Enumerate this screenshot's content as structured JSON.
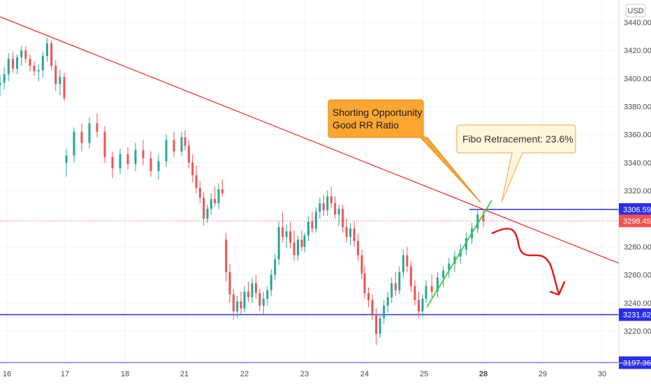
{
  "currency_badge": "USD",
  "chart_data": {
    "type": "candlestick",
    "x_axis": {
      "tick_labels": [
        "16",
        "17",
        "18",
        "21",
        "22",
        "23",
        "24",
        "25",
        "28",
        "29",
        "30"
      ],
      "bold_label": "28"
    },
    "y_axis": {
      "ylim": [
        3190,
        3450
      ],
      "tick_values": [
        3440,
        3420,
        3400,
        3380,
        3360,
        3340,
        3320,
        3300,
        3280,
        3260,
        3240,
        3220
      ],
      "tick_labels": [
        "3440.00",
        "3420.00",
        "3400.00",
        "3380.00",
        "3360.00",
        "3340.00",
        "3320.00",
        "3300.00",
        "3280.00",
        "3260.00",
        "3240.00",
        "3220.00"
      ]
    },
    "price_levels": [
      {
        "value": 3306.59,
        "label": "3306.59",
        "color": "#2a2ee6"
      },
      {
        "value": 3231.62,
        "label": "3231.62",
        "color": "#2a2ee6"
      },
      {
        "value": 3197.36,
        "label": "3197.36",
        "color": "#2a2ee6"
      }
    ],
    "last_price": {
      "value": 3298.45,
      "label": "3298.45",
      "color": "#ef5350"
    },
    "annotations": {
      "shorting": {
        "line1": "Shorting Opportunity",
        "line2": "Good RR Ratio"
      },
      "fibo": "Fibo Retracement: 23.6%"
    },
    "colors": {
      "up": "#26a69a",
      "down": "#ef5350",
      "trendline": "#e53935",
      "support_trend": "#39d33c",
      "projection": "#e61b1b"
    },
    "candles": [
      [
        3395,
        3403,
        3387,
        3397
      ],
      [
        3397,
        3408,
        3392,
        3403
      ],
      [
        3403,
        3418,
        3398,
        3414
      ],
      [
        3414,
        3419,
        3404,
        3407
      ],
      [
        3407,
        3417,
        3403,
        3415
      ],
      [
        3415,
        3423,
        3409,
        3420
      ],
      [
        3420,
        3423,
        3411,
        3414
      ],
      [
        3414,
        3417,
        3405,
        3409
      ],
      [
        3409,
        3412,
        3402,
        3405
      ],
      [
        3405,
        3410,
        3398,
        3406
      ],
      [
        3406,
        3419,
        3401,
        3416
      ],
      [
        3416,
        3429,
        3412,
        3425
      ],
      [
        3425,
        3427,
        3406,
        3409
      ],
      [
        3409,
        3413,
        3391,
        3396
      ],
      [
        3396,
        3406,
        3388,
        3401
      ],
      [
        3401,
        3404,
        3384,
        3386
      ],
      [
        3340,
        3350,
        3330,
        3345
      ],
      [
        3345,
        3365,
        3340,
        3362
      ],
      [
        3362,
        3368,
        3348,
        3354
      ],
      [
        3354,
        3372,
        3350,
        3368
      ],
      [
        3368,
        3375,
        3358,
        3362
      ],
      [
        3362,
        3366,
        3340,
        3344
      ],
      [
        3344,
        3348,
        3329,
        3336
      ],
      [
        3336,
        3350,
        3332,
        3346
      ],
      [
        3346,
        3351,
        3335,
        3339
      ],
      [
        3339,
        3354,
        3334,
        3349
      ],
      [
        3349,
        3356,
        3338,
        3343
      ],
      [
        3343,
        3348,
        3330,
        3334
      ],
      [
        3334,
        3346,
        3328,
        3341
      ],
      [
        3341,
        3360,
        3337,
        3356
      ],
      [
        3356,
        3362,
        3344,
        3348
      ],
      [
        3348,
        3362,
        3345,
        3358
      ],
      [
        3358,
        3363,
        3349,
        3352
      ],
      [
        3352,
        3356,
        3336,
        3340
      ],
      [
        3340,
        3346,
        3326,
        3331
      ],
      [
        3331,
        3338,
        3318,
        3322
      ],
      [
        3322,
        3327,
        3311,
        3315
      ],
      [
        3315,
        3319,
        3295,
        3300
      ],
      [
        3300,
        3310,
        3297,
        3307
      ],
      [
        3307,
        3318,
        3303,
        3314
      ],
      [
        3314,
        3323,
        3309,
        3311
      ],
      [
        3311,
        3325,
        3307,
        3321
      ],
      [
        3321,
        3328,
        3316,
        3318
      ],
      [
        3285,
        3290,
        3255,
        3262
      ],
      [
        3262,
        3268,
        3240,
        3246
      ],
      [
        3246,
        3250,
        3228,
        3234
      ],
      [
        3234,
        3245,
        3229,
        3241
      ],
      [
        3241,
        3248,
        3232,
        3236
      ],
      [
        3236,
        3252,
        3233,
        3248
      ],
      [
        3248,
        3255,
        3241,
        3244
      ],
      [
        3244,
        3258,
        3240,
        3254
      ],
      [
        3254,
        3260,
        3243,
        3247
      ],
      [
        3247,
        3250,
        3234,
        3238
      ],
      [
        3238,
        3248,
        3232,
        3243
      ],
      [
        3243,
        3252,
        3238,
        3249
      ],
      [
        3249,
        3264,
        3245,
        3260
      ],
      [
        3260,
        3275,
        3256,
        3271
      ],
      [
        3271,
        3298,
        3267,
        3294
      ],
      [
        3294,
        3305,
        3283,
        3287
      ],
      [
        3287,
        3296,
        3279,
        3291
      ],
      [
        3291,
        3298,
        3279,
        3283
      ],
      [
        3283,
        3292,
        3270,
        3274
      ],
      [
        3274,
        3288,
        3270,
        3285
      ],
      [
        3285,
        3292,
        3277,
        3280
      ],
      [
        3280,
        3290,
        3276,
        3288
      ],
      [
        3288,
        3302,
        3284,
        3298
      ],
      [
        3298,
        3305,
        3290,
        3293
      ],
      [
        3293,
        3308,
        3290,
        3305
      ],
      [
        3305,
        3315,
        3300,
        3311
      ],
      [
        3311,
        3317,
        3302,
        3306
      ],
      [
        3306,
        3320,
        3302,
        3316
      ],
      [
        3316,
        3323,
        3308,
        3311
      ],
      [
        3311,
        3316,
        3300,
        3303
      ],
      [
        3303,
        3310,
        3295,
        3307
      ],
      [
        3307,
        3310,
        3290,
        3294
      ],
      [
        3294,
        3300,
        3283,
        3287
      ],
      [
        3287,
        3297,
        3281,
        3293
      ],
      [
        3293,
        3298,
        3280,
        3284
      ],
      [
        3284,
        3289,
        3270,
        3274
      ],
      [
        3274,
        3278,
        3257,
        3261
      ],
      [
        3261,
        3266,
        3243,
        3247
      ],
      [
        3247,
        3251,
        3237,
        3242
      ],
      [
        3242,
        3246,
        3228,
        3232
      ],
      [
        3232,
        3236,
        3210,
        3218
      ],
      [
        3218,
        3232,
        3215,
        3229
      ],
      [
        3229,
        3242,
        3225,
        3238
      ],
      [
        3238,
        3248,
        3233,
        3244
      ],
      [
        3244,
        3258,
        3240,
        3254
      ],
      [
        3254,
        3262,
        3245,
        3249
      ],
      [
        3249,
        3266,
        3246,
        3262
      ],
      [
        3262,
        3278,
        3258,
        3274
      ],
      [
        3274,
        3280,
        3262,
        3266
      ],
      [
        3266,
        3270,
        3248,
        3252
      ],
      [
        3252,
        3256,
        3238,
        3242
      ],
      [
        3242,
        3248,
        3229,
        3234
      ],
      [
        3234,
        3246,
        3230,
        3243
      ],
      [
        3243,
        3256,
        3240,
        3252
      ],
      [
        3252,
        3260,
        3244,
        3248
      ],
      [
        3248,
        3262,
        3244,
        3258
      ],
      [
        3258,
        3266,
        3251,
        3263
      ],
      [
        3263,
        3272,
        3258,
        3268
      ],
      [
        3268,
        3277,
        3262,
        3273
      ],
      [
        3273,
        3282,
        3268,
        3278
      ],
      [
        3278,
        3290,
        3274,
        3286
      ],
      [
        3286,
        3297,
        3282,
        3293
      ],
      [
        3293,
        3307,
        3290,
        3303
      ],
      [
        3303,
        3306,
        3294,
        3298
      ]
    ],
    "candle_x_ranges": [
      [
        0,
        92
      ],
      [
        95,
        260
      ],
      [
        265,
        345
      ],
      [
        350,
        432
      ],
      [
        436,
        518
      ],
      [
        522,
        605
      ],
      [
        610,
        692
      ]
    ]
  }
}
